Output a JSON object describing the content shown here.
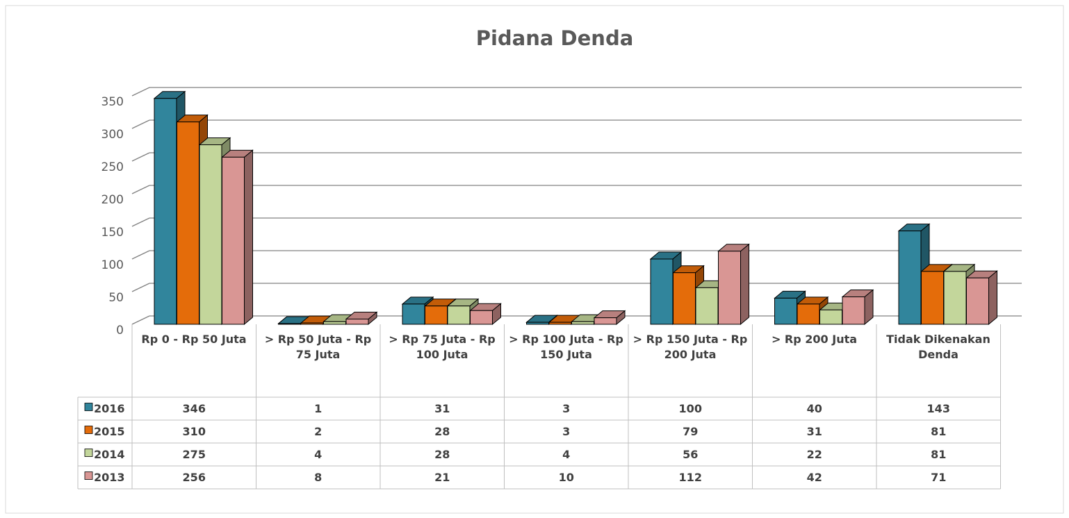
{
  "chart_data": {
    "type": "bar3d",
    "title": "Pidana Denda",
    "categories": [
      "Rp 0 - Rp 50 Juta",
      "> Rp 50 Juta - Rp 75 Juta",
      "> Rp 75 Juta - Rp 100 Juta",
      "> Rp 100 Juta - Rp 150 Juta",
      "> Rp 150 Juta - Rp 200 Juta",
      "> Rp 200 Juta",
      "Tidak Dikenakan Denda"
    ],
    "series": [
      {
        "name": "2016",
        "color": "#31859c",
        "values": [
          346,
          1,
          31,
          3,
          100,
          40,
          143
        ]
      },
      {
        "name": "2015",
        "color": "#e46c0a",
        "values": [
          310,
          2,
          28,
          3,
          79,
          31,
          81
        ]
      },
      {
        "name": "2014",
        "color": "#c3d69b",
        "values": [
          275,
          4,
          28,
          4,
          56,
          22,
          81
        ]
      },
      {
        "name": "2013",
        "color": "#d99694",
        "values": [
          256,
          8,
          21,
          10,
          112,
          42,
          71
        ]
      }
    ],
    "ylim": [
      0,
      350
    ],
    "yticks": [
      0,
      50,
      100,
      150,
      200,
      250,
      300,
      350
    ],
    "grid": true,
    "data_table": true
  }
}
